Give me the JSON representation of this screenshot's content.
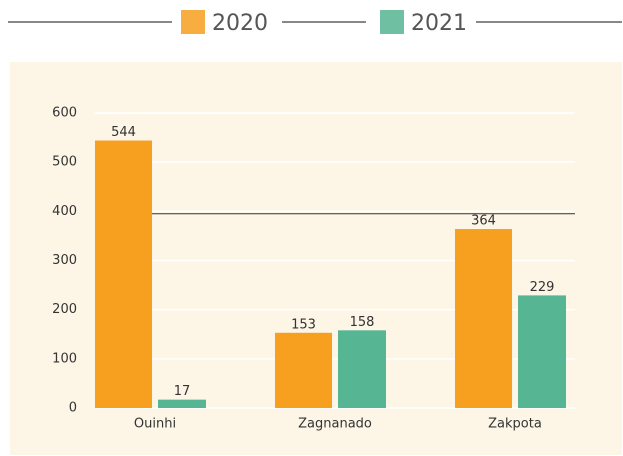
{
  "chart_data": {
    "type": "bar",
    "categories": [
      "Ouinhi",
      "Zagnanado",
      "Zakpota"
    ],
    "series": [
      {
        "name": "2020",
        "color": "#f79f1f",
        "values": [
          544,
          153,
          364
        ]
      },
      {
        "name": "2021",
        "color": "#56b592",
        "values": [
          17,
          158,
          229
        ]
      }
    ],
    "ylim": [
      0,
      600
    ],
    "yticks": [
      0,
      100,
      200,
      300,
      400,
      500,
      600
    ],
    "grid": true,
    "reference_line": 395
  }
}
